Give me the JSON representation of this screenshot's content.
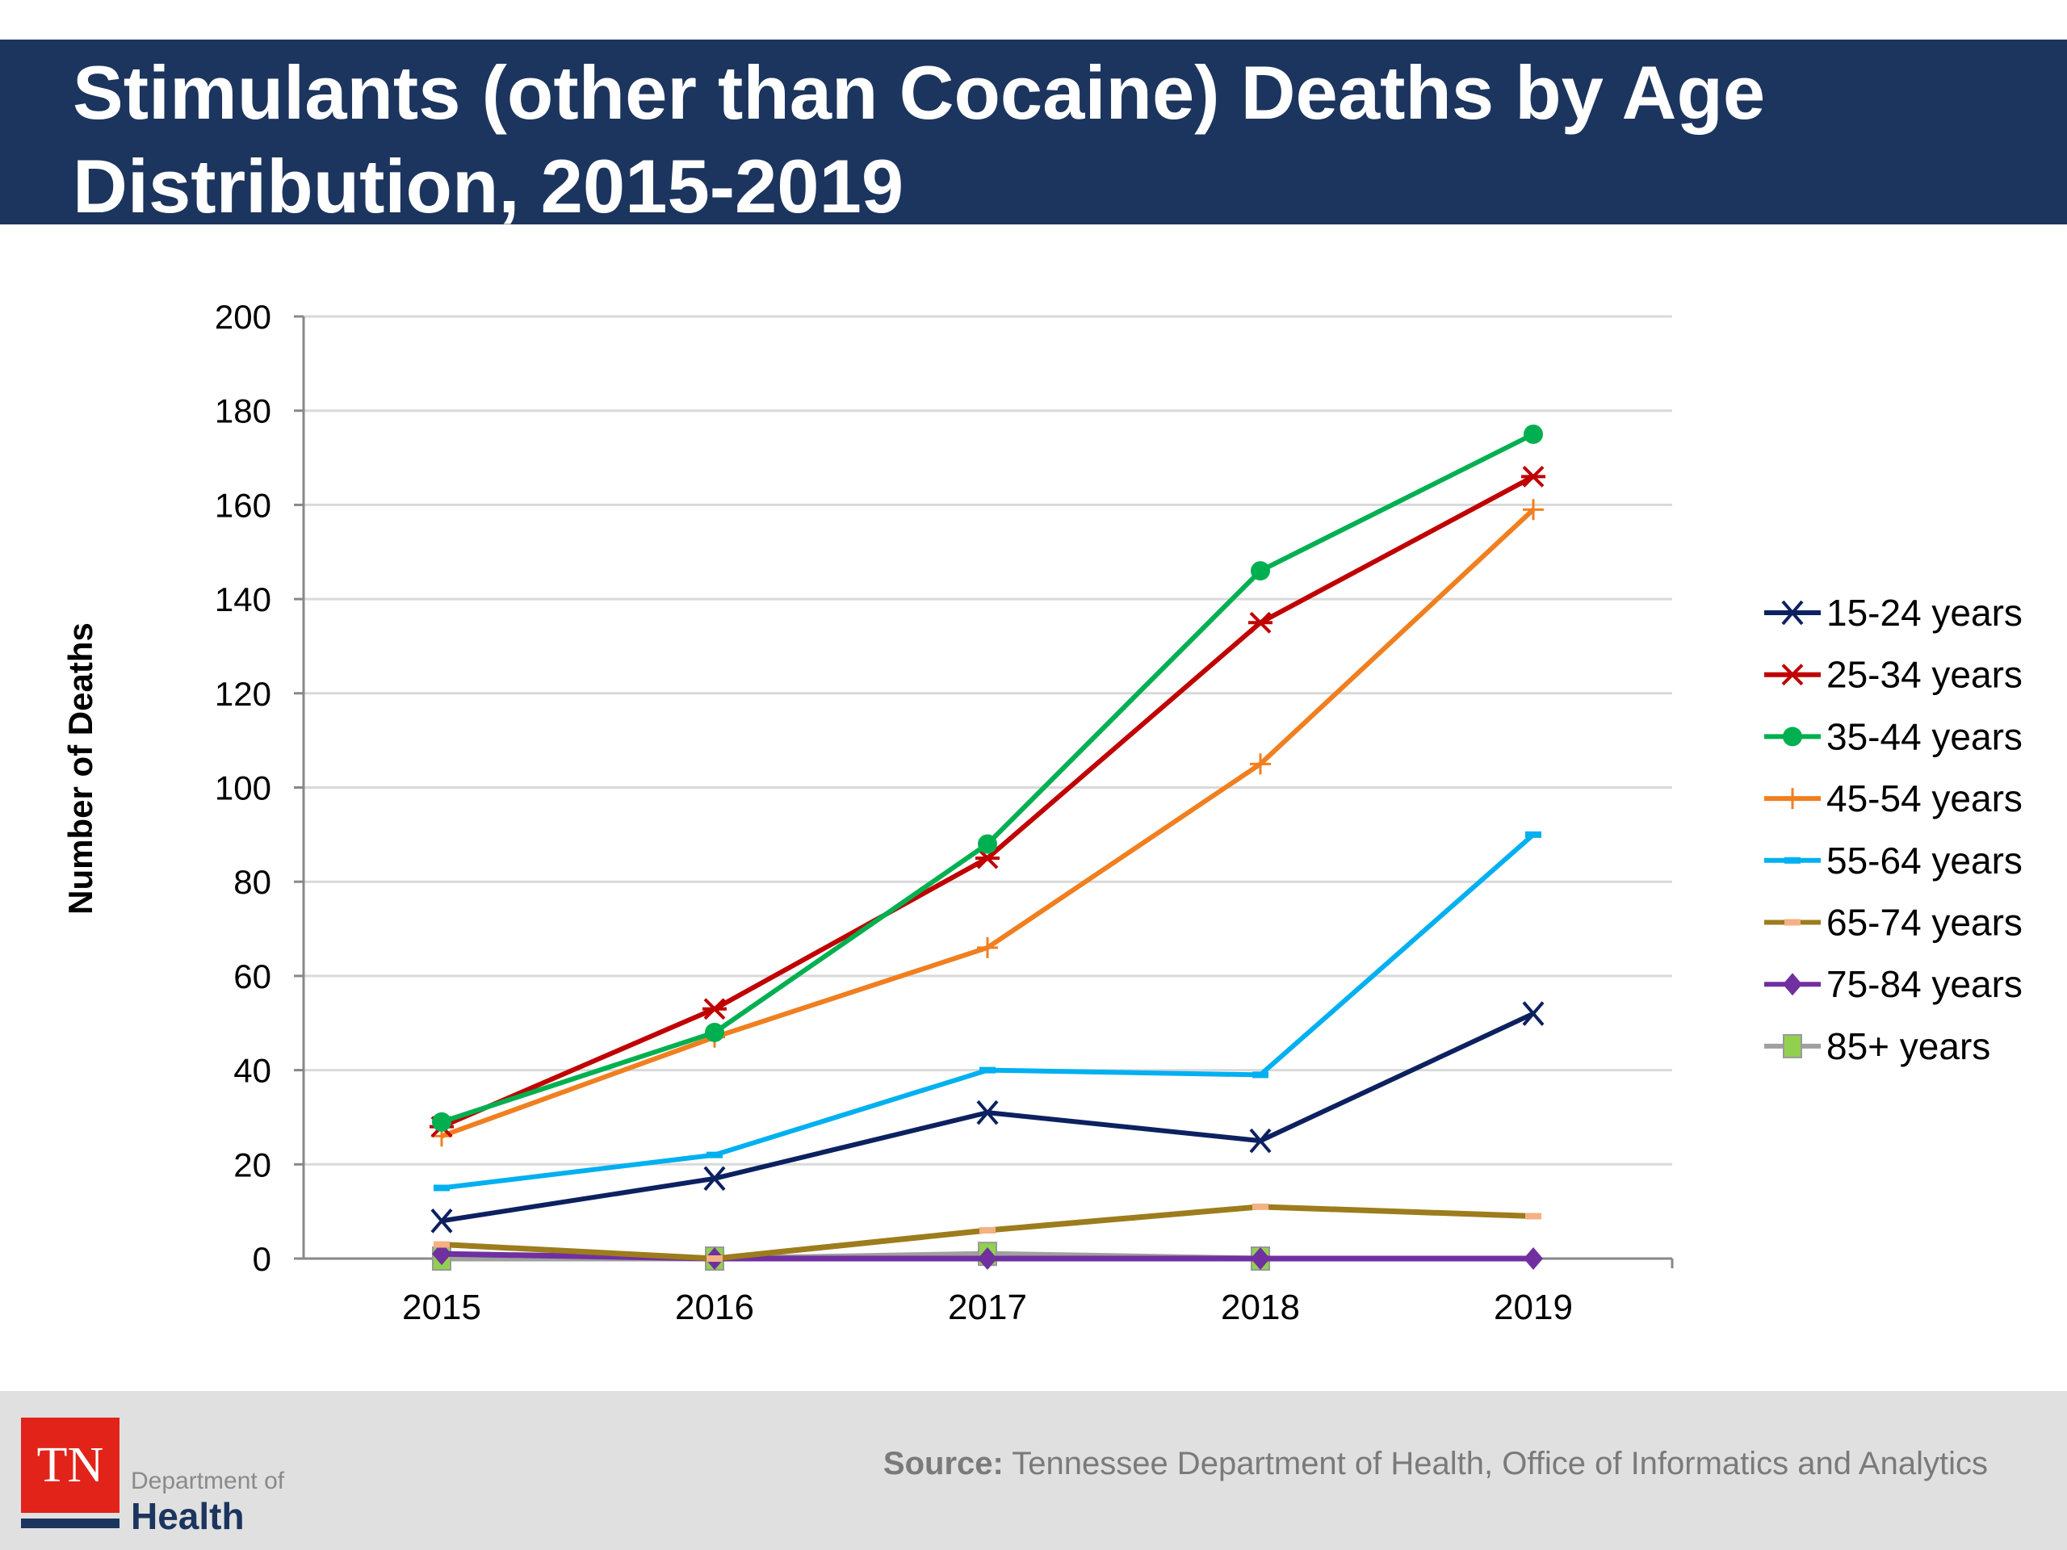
{
  "chart_data": {
    "type": "line",
    "title": "Stimulants (other than Cocaine) Deaths by Age Distribution, 2015-2019",
    "xlabel": "",
    "ylabel": "Number of Deaths",
    "categories": [
      "2015",
      "2016",
      "2017",
      "2018",
      "2019"
    ],
    "ylim": [
      0,
      200
    ],
    "yticks": [
      0,
      20,
      40,
      60,
      80,
      100,
      120,
      140,
      160,
      180,
      200
    ],
    "grid": true,
    "legend_position": "right",
    "series": [
      {
        "name": "15-24 years",
        "color": "#0d2160",
        "marker": "x",
        "values": [
          8,
          17,
          31,
          25,
          52
        ]
      },
      {
        "name": "25-34 years",
        "color": "#c00000",
        "marker": "star",
        "values": [
          28,
          53,
          85,
          135,
          166
        ]
      },
      {
        "name": "35-44 years",
        "color": "#00b050",
        "marker": "circle",
        "values": [
          29,
          48,
          88,
          146,
          175
        ]
      },
      {
        "name": "45-54 years",
        "color": "#f07f20",
        "marker": "plus",
        "values": [
          26,
          47,
          66,
          105,
          159
        ]
      },
      {
        "name": "55-64 years",
        "color": "#00b0f0",
        "marker": "dash",
        "values": [
          15,
          22,
          40,
          39,
          90
        ]
      },
      {
        "name": "65-74 years",
        "color": "#9c7c1c",
        "marker": "bar",
        "values": [
          3,
          0,
          6,
          11,
          9
        ]
      },
      {
        "name": "75-84 years",
        "color": "#7030a0",
        "marker": "diamond",
        "values": [
          1,
          0,
          0,
          0,
          0
        ]
      },
      {
        "name": "85+ years",
        "color": "#a0a0a0",
        "marker": "square",
        "marker_color": "#92d050",
        "values": [
          0,
          0,
          1,
          0,
          null
        ]
      }
    ]
  },
  "footer": {
    "source_label": "Source:",
    "source_text": " Tennessee Department of Health, Office of Informatics and Analytics",
    "logo": {
      "mark": "TN",
      "line1": "Department of",
      "line2": "Health"
    }
  }
}
